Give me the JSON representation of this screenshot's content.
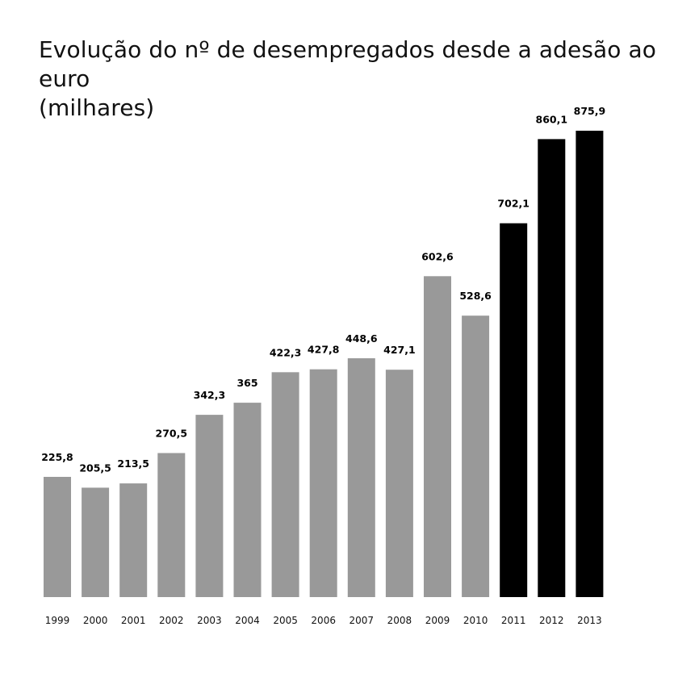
{
  "chart_data": {
    "type": "bar",
    "title": "Evolução do nº de desempregados desde a adesão ao euro",
    "subtitle": "(milhares)",
    "categories": [
      "1999",
      "2000",
      "2001",
      "2002",
      "2003",
      "2004",
      "2005",
      "2006",
      "2007",
      "2008",
      "2009",
      "2010",
      "2011",
      "2012",
      "2013"
    ],
    "values": [
      225.8,
      205.5,
      213.5,
      270.5,
      342.3,
      365,
      422.3,
      427.8,
      448.6,
      427.1,
      602.6,
      528.6,
      702.1,
      860.1,
      875.9
    ],
    "value_labels": [
      "225,8",
      "205,5",
      "213,5",
      "270,5",
      "342,3",
      "365",
      "422,3",
      "427,8",
      "448,6",
      "427,1",
      "602,6",
      "528,6",
      "702,1",
      "860,1",
      "875,9"
    ],
    "colors": [
      "#999999",
      "#999999",
      "#999999",
      "#999999",
      "#999999",
      "#999999",
      "#999999",
      "#999999",
      "#999999",
      "#999999",
      "#999999",
      "#999999",
      "#000000",
      "#000000",
      "#000000"
    ],
    "ylim": [
      0,
      875.9
    ],
    "grid": false,
    "xlabel": "",
    "ylabel": ""
  }
}
